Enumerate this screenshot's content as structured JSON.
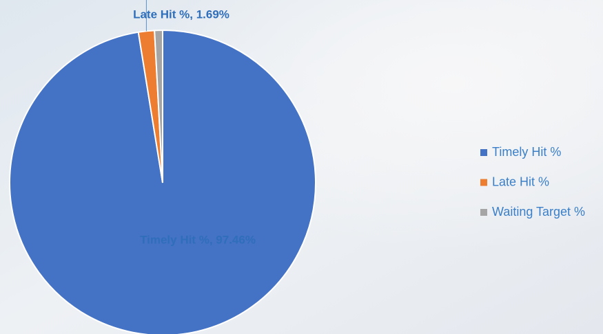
{
  "chart_data": {
    "type": "pie",
    "categories": [
      "Timely Hit %",
      "Late Hit %",
      "Waiting Target %"
    ],
    "values": [
      97.46,
      1.69,
      0.85
    ],
    "value_labels": [
      "Timely Hit %, 97.46%",
      "Late Hit %, 1.69%",
      null
    ],
    "colors": [
      "#4472c4",
      "#ed7d31",
      "#a5a5a5"
    ],
    "legend": "right"
  }
}
